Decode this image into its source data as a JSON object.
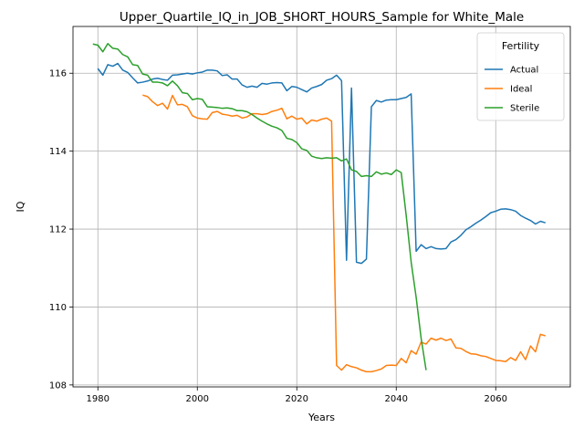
{
  "chart_data": {
    "type": "line",
    "title": "Upper_Quartile_IQ_in_JOB_SHORT_HOURS_Sample for White_Male",
    "xlabel": "Years",
    "ylabel": "IQ",
    "xlim": [
      1975,
      2075
    ],
    "ylim": [
      107.95,
      117.2
    ],
    "xticks": [
      1980,
      2000,
      2020,
      2040,
      2060
    ],
    "yticks": [
      108,
      110,
      112,
      114,
      116
    ],
    "grid": true,
    "legend": {
      "title": "Fertility",
      "position": "top-right"
    },
    "series": [
      {
        "name": "Actual",
        "color": "#1f77b4",
        "x": [
          1980,
          1981,
          1982,
          1983,
          1984,
          1985,
          1986,
          1987,
          1988,
          1989,
          1990,
          1991,
          1992,
          1993,
          1994,
          1995,
          1996,
          1997,
          1998,
          1999,
          2000,
          2001,
          2002,
          2003,
          2004,
          2005,
          2006,
          2007,
          2008,
          2009,
          2010,
          2011,
          2012,
          2013,
          2014,
          2015,
          2016,
          2017,
          2018,
          2019,
          2020,
          2021,
          2022,
          2023,
          2024,
          2025,
          2026,
          2027,
          2028,
          2029,
          2030,
          2031,
          2032,
          2033,
          2034,
          2035,
          2036,
          2037,
          2038,
          2039,
          2040,
          2041,
          2042,
          2043,
          2044,
          2045,
          2046,
          2047,
          2048,
          2049,
          2050,
          2051,
          2052,
          2053,
          2054,
          2055,
          2056,
          2057,
          2058,
          2059,
          2060,
          2061,
          2062,
          2063,
          2064,
          2065,
          2066,
          2067,
          2068,
          2069,
          2070
        ],
        "y": [
          116.12,
          115.95,
          116.22,
          116.18,
          116.25,
          116.08,
          116.02,
          115.88,
          115.75,
          115.77,
          115.8,
          115.85,
          115.87,
          115.84,
          115.82,
          115.95,
          115.96,
          115.98,
          116.0,
          115.98,
          116.01,
          116.03,
          116.08,
          116.08,
          116.06,
          115.94,
          115.96,
          115.85,
          115.85,
          115.7,
          115.64,
          115.67,
          115.64,
          115.74,
          115.72,
          115.75,
          115.76,
          115.75,
          115.55,
          115.66,
          115.64,
          115.58,
          115.52,
          115.62,
          115.66,
          115.71,
          115.82,
          115.86,
          115.95,
          115.81,
          111.2,
          115.62,
          111.15,
          111.12,
          111.23,
          115.14,
          115.3,
          115.26,
          115.31,
          115.32,
          115.32,
          115.35,
          115.38,
          115.47,
          111.43,
          111.6,
          111.5,
          111.55,
          111.5,
          111.49,
          111.5,
          111.67,
          111.73,
          111.84,
          111.98,
          112.06,
          112.15,
          112.23,
          112.32,
          112.42,
          112.46,
          112.51,
          112.52,
          112.5,
          112.46,
          112.35,
          112.28,
          112.22,
          112.13,
          112.2,
          112.16
        ]
      },
      {
        "name": "Ideal",
        "color": "#ff7f0e",
        "x": [
          1989,
          1990,
          1991,
          1992,
          1993,
          1994,
          1995,
          1996,
          1997,
          1998,
          1999,
          2000,
          2001,
          2002,
          2003,
          2004,
          2005,
          2006,
          2007,
          2008,
          2009,
          2010,
          2011,
          2012,
          2013,
          2014,
          2015,
          2016,
          2017,
          2018,
          2019,
          2020,
          2021,
          2022,
          2023,
          2024,
          2025,
          2026,
          2027,
          2028,
          2029,
          2030,
          2031,
          2032,
          2033,
          2034,
          2035,
          2036,
          2037,
          2038,
          2039,
          2040,
          2041,
          2042,
          2043,
          2044,
          2045,
          2046,
          2047,
          2048,
          2049,
          2050,
          2051,
          2052,
          2053,
          2054,
          2055,
          2056,
          2057,
          2058,
          2059,
          2060,
          2061,
          2062,
          2063,
          2064,
          2065,
          2066,
          2067,
          2068,
          2069,
          2070
        ],
        "y": [
          115.44,
          115.4,
          115.27,
          115.17,
          115.23,
          115.08,
          115.43,
          115.19,
          115.2,
          115.14,
          114.91,
          114.85,
          114.83,
          114.82,
          114.99,
          115.02,
          114.95,
          114.93,
          114.9,
          114.92,
          114.85,
          114.88,
          114.96,
          114.96,
          114.94,
          114.96,
          115.02,
          115.05,
          115.1,
          114.83,
          114.9,
          114.82,
          114.85,
          114.7,
          114.8,
          114.77,
          114.82,
          114.85,
          114.77,
          108.5,
          108.38,
          108.52,
          108.47,
          108.44,
          108.38,
          108.34,
          108.34,
          108.37,
          108.41,
          108.5,
          108.51,
          108.5,
          108.68,
          108.57,
          108.88,
          108.79,
          109.1,
          109.05,
          109.2,
          109.15,
          109.2,
          109.14,
          109.18,
          108.95,
          108.94,
          108.86,
          108.8,
          108.79,
          108.75,
          108.73,
          108.68,
          108.63,
          108.62,
          108.6,
          108.7,
          108.63,
          108.85,
          108.65,
          109.0,
          108.85,
          109.3,
          109.26
        ]
      },
      {
        "name": "Sterile",
        "color": "#2ca02c",
        "x": [
          1979,
          1980,
          1981,
          1982,
          1983,
          1984,
          1985,
          1986,
          1987,
          1988,
          1989,
          1990,
          1991,
          1992,
          1993,
          1994,
          1995,
          1996,
          1997,
          1998,
          1999,
          2000,
          2001,
          2002,
          2003,
          2004,
          2005,
          2006,
          2007,
          2008,
          2009,
          2010,
          2011,
          2012,
          2013,
          2014,
          2015,
          2016,
          2017,
          2018,
          2019,
          2020,
          2021,
          2022,
          2023,
          2024,
          2025,
          2026,
          2027,
          2028,
          2029,
          2030,
          2031,
          2032,
          2033,
          2034,
          2035,
          2036,
          2037,
          2038,
          2039,
          2040,
          2041,
          2042,
          2043,
          2044,
          2045,
          2046
        ],
        "y": [
          116.75,
          116.72,
          116.55,
          116.76,
          116.64,
          116.62,
          116.48,
          116.42,
          116.22,
          116.2,
          115.98,
          115.95,
          115.77,
          115.77,
          115.75,
          115.68,
          115.8,
          115.68,
          115.5,
          115.48,
          115.32,
          115.35,
          115.33,
          115.14,
          115.13,
          115.12,
          115.1,
          115.11,
          115.09,
          115.04,
          115.04,
          115.01,
          114.94,
          114.85,
          114.77,
          114.7,
          114.64,
          114.6,
          114.53,
          114.33,
          114.3,
          114.22,
          114.06,
          114.02,
          113.87,
          113.83,
          113.81,
          113.83,
          113.82,
          113.83,
          113.75,
          113.8,
          113.52,
          113.48,
          113.35,
          113.37,
          113.35,
          113.47,
          113.41,
          113.44,
          113.4,
          113.52,
          113.45,
          112.35,
          111.15,
          110.25,
          109.2,
          108.38
        ]
      }
    ]
  }
}
